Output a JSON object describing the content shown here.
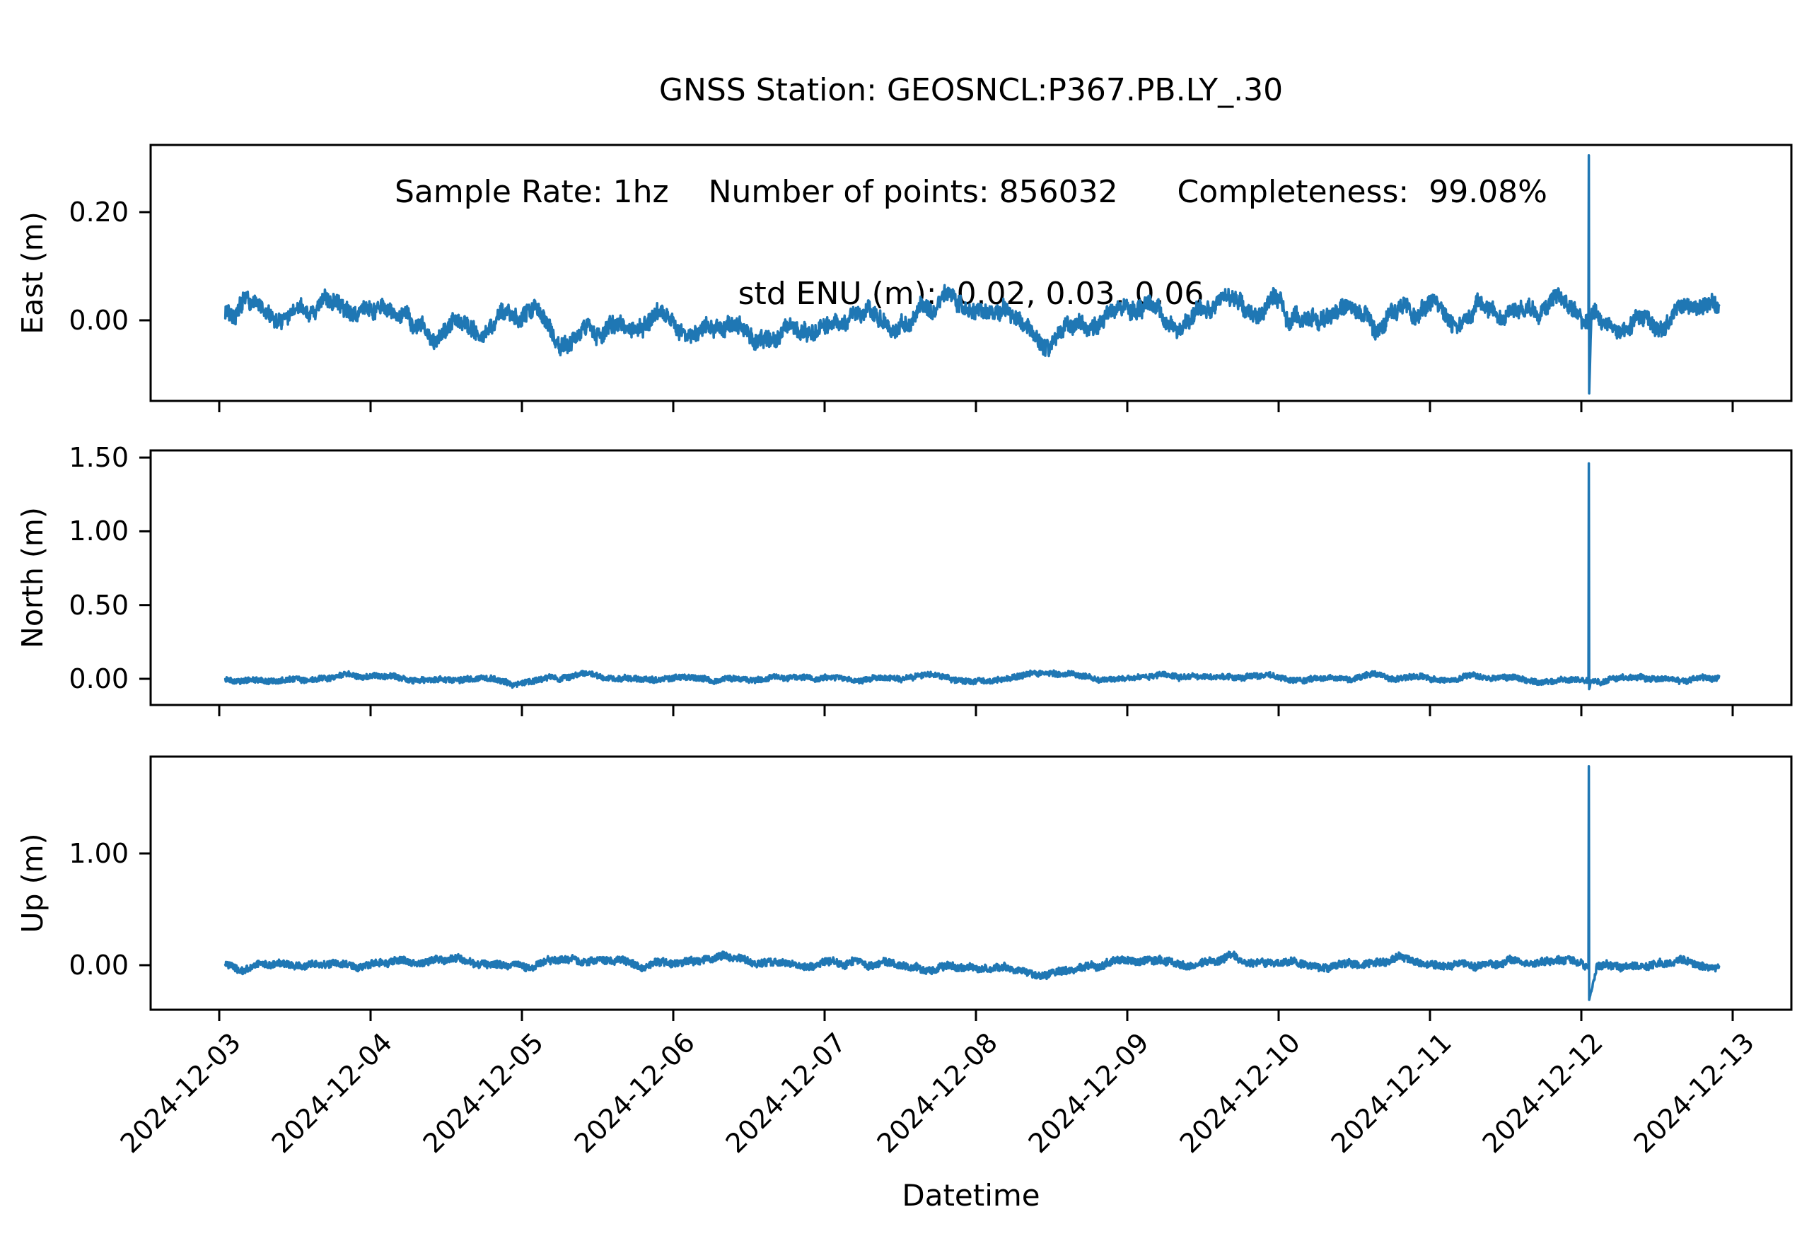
{
  "figure": {
    "background": "#ffffff",
    "line_color": "#1f77b4",
    "axis_color": "#000000",
    "title_line1": "GNSS Station: GEOSNCL:P367.PB.LY_.30",
    "title_line2": "Sample Rate: 1hz    Number of points: 856032      Completeness:  99.08%",
    "title_line3": "std ENU (m):  0.02, 0.03, 0.06",
    "station": "GEOSNCL:P367.PB.LY_.30",
    "sample_rate": "1hz",
    "number_of_points": 856032,
    "completeness_pct": 99.08,
    "std_enu_m": [
      0.02,
      0.03,
      0.06
    ]
  },
  "chart_data": {
    "type": "line",
    "xlabel": "Datetime",
    "x_tick_labels": [
      "2024-12-03",
      "2024-12-04",
      "2024-12-05",
      "2024-12-06",
      "2024-12-07",
      "2024-12-08",
      "2024-12-09",
      "2024-12-10",
      "2024-12-11",
      "2024-12-12",
      "2024-12-13"
    ],
    "x_start_day": 0.04,
    "x_end_day": 9.91,
    "grid": false,
    "legend": "none",
    "subplots": [
      {
        "name": "east",
        "ylabel": "East (m)",
        "ylim": [
          -0.149,
          0.324
        ],
        "yticks": [
          0.0,
          0.2
        ],
        "ytick_labels": [
          "0.00",
          "0.20"
        ],
        "baseline_mean_m": 0.012,
        "noise_band_m": 0.014,
        "slow_variation_m": 0.022,
        "spike": {
          "date": "2024-12-12",
          "day": 9.05,
          "peak_m": 0.305,
          "trough_m": -0.135,
          "trough_recovery_days": 0.012
        },
        "gen": {
          "seed": 7,
          "phi": 0.995,
          "step": 0.004,
          "waves": [
            [
              0.016,
              1.0,
              0.3
            ],
            [
              0.012,
              2.2,
              0.8
            ],
            [
              0.008,
              3.7,
              0.45
            ],
            [
              0.01,
              0.45,
              0.1
            ]
          ],
          "clamp": [
            -0.115,
            0.085
          ]
        }
      },
      {
        "name": "north",
        "ylabel": "North (m)",
        "ylim": [
          -0.177,
          1.548
        ],
        "yticks": [
          0.0,
          0.5,
          1.0,
          1.5
        ],
        "ytick_labels": [
          "0.00",
          "0.50",
          "1.00",
          "1.50"
        ],
        "baseline_mean_m": 0.0,
        "noise_band_m": 0.018,
        "slow_variation_m": 0.012,
        "spike": {
          "date": "2024-12-12",
          "day": 9.05,
          "peak_m": 1.46,
          "trough_m": -0.07,
          "trough_recovery_days": 0.012
        },
        "gen": {
          "seed": 13,
          "phi": 0.992,
          "step": 0.003,
          "waves": [
            [
              0.009,
              1.3,
              0.2
            ],
            [
              0.006,
              3.1,
              0.7
            ]
          ],
          "clamp": [
            -0.06,
            0.08
          ]
        }
      },
      {
        "name": "up",
        "ylabel": "Up (m)",
        "ylim": [
          -0.399,
          1.867
        ],
        "yticks": [
          0.0,
          1.0
        ],
        "ytick_labels": [
          "0.00",
          "1.00"
        ],
        "baseline_mean_m": 0.005,
        "noise_band_m": 0.032,
        "slow_variation_m": 0.02,
        "spike": {
          "date": "2024-12-12",
          "day": 9.05,
          "peak_m": 1.78,
          "trough_m": -0.31,
          "trough_recovery_days": 0.05
        },
        "gen": {
          "seed": 21,
          "phi": 0.994,
          "step": 0.005,
          "waves": [
            [
              0.018,
              1.1,
              0.6
            ],
            [
              0.012,
              2.7,
              0.2
            ],
            [
              0.008,
              5.3,
              0.9
            ]
          ],
          "clamp": [
            -0.165,
            0.17
          ]
        }
      }
    ]
  }
}
